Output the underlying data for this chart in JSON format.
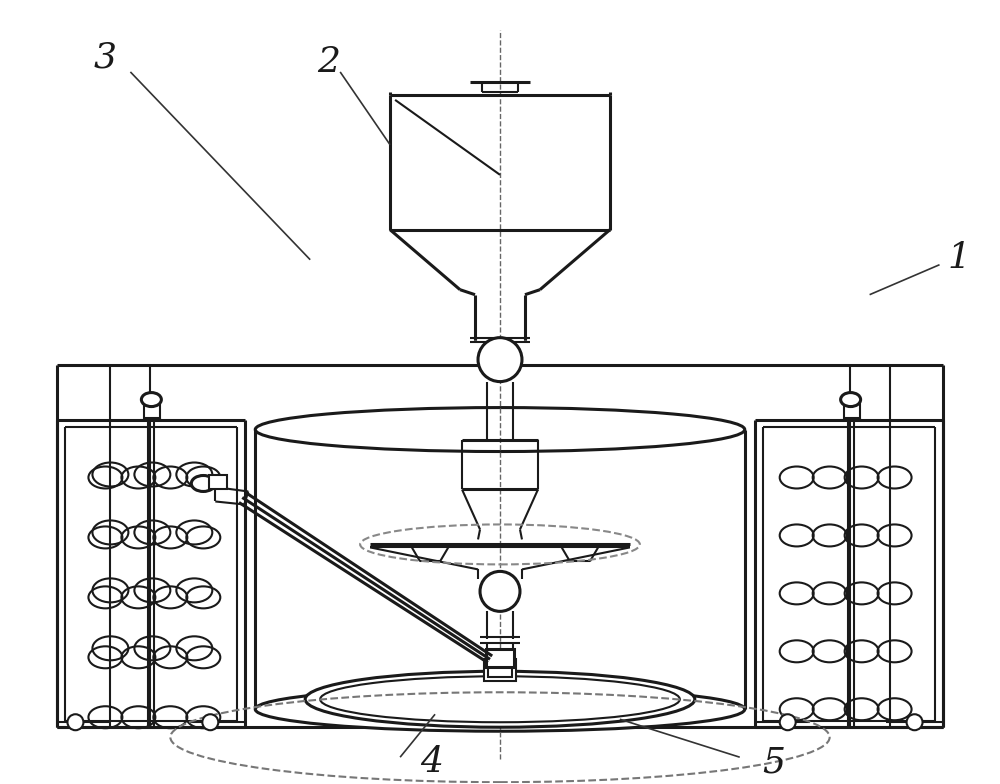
{
  "bg_color": "#ffffff",
  "line_color": "#1a1a1a",
  "lw": 1.5,
  "lw2": 2.2,
  "fig_width": 10.0,
  "fig_height": 7.84,
  "dpi": 100
}
